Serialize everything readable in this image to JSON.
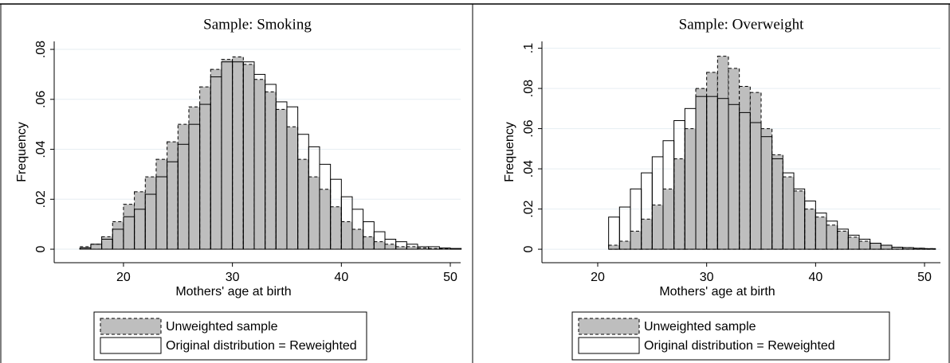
{
  "chart_data": [
    {
      "type": "histogram",
      "title": "Sample: Smoking",
      "x_label": "Mothers' age at birth",
      "y_label": "Frequency",
      "bins": [
        15,
        16,
        17,
        18,
        19,
        20,
        21,
        22,
        23,
        24,
        25,
        26,
        27,
        28,
        29,
        30,
        31,
        32,
        33,
        34,
        35,
        36,
        37,
        38,
        39,
        40,
        41,
        42,
        43,
        44,
        45,
        46,
        47,
        48,
        49,
        50,
        51
      ],
      "series": [
        {
          "name": "Unweighted sample",
          "color": "#bebebe",
          "line_style": "dashed",
          "values": [
            0,
            0.001,
            0.002,
            0.005,
            0.011,
            0.018,
            0.023,
            0.029,
            0.036,
            0.043,
            0.05,
            0.057,
            0.065,
            0.072,
            0.076,
            0.077,
            0.074,
            0.068,
            0.063,
            0.056,
            0.049,
            0.036,
            0.029,
            0.024,
            0.017,
            0.011,
            0.008,
            0.005,
            0.003,
            0.002,
            0.001,
            0.001,
            0.0005,
            0.0003,
            0.0002,
            0.0001
          ]
        },
        {
          "name": "Original distribution = Reweighted",
          "color": "#ffffff",
          "line_style": "solid",
          "values": [
            0,
            0.0005,
            0.002,
            0.004,
            0.008,
            0.013,
            0.016,
            0.022,
            0.029,
            0.035,
            0.042,
            0.05,
            0.058,
            0.069,
            0.075,
            0.075,
            0.075,
            0.07,
            0.066,
            0.059,
            0.057,
            0.046,
            0.041,
            0.034,
            0.028,
            0.021,
            0.016,
            0.011,
            0.007,
            0.004,
            0.003,
            0.002,
            0.001,
            0.001,
            0.0005,
            0.0003
          ]
        }
      ],
      "xlim": [
        13.64,
        50.95
      ],
      "xticks": [
        20,
        30,
        40,
        50
      ],
      "ylim": [
        -0.0054,
        0.0832
      ],
      "yticks": [
        0,
        {
          "value": 0.02,
          "label": ".02"
        },
        {
          "value": 0.04,
          "label": ".04"
        },
        {
          "value": 0.06,
          "label": ".06"
        },
        {
          "value": 0.08,
          "label": ".08"
        }
      ],
      "grid": true,
      "legend": "bottom"
    },
    {
      "type": "histogram",
      "title": "Sample: Overweight",
      "x_label": "Mothers' age at birth",
      "y_label": "Frequency",
      "bins": [
        21,
        22,
        23,
        24,
        25,
        26,
        27,
        28,
        29,
        30,
        31,
        32,
        33,
        34,
        35,
        36,
        37,
        38,
        39,
        40,
        41,
        42,
        43,
        44,
        45,
        46,
        47,
        48,
        49,
        50,
        51
      ],
      "series": [
        {
          "name": "Unweighted sample",
          "color": "#bebebe",
          "line_style": "dashed",
          "values": [
            0.002,
            0.004,
            0.009,
            0.015,
            0.022,
            0.03,
            0.045,
            0.06,
            0.08,
            0.088,
            0.096,
            0.09,
            0.081,
            0.078,
            0.06,
            0.047,
            0.036,
            0.029,
            0.02,
            0.016,
            0.012,
            0.009,
            0.006,
            0.004,
            0.003,
            0.002,
            0.001,
            0.0008,
            0.0005,
            0.0003
          ]
        },
        {
          "name": "Original distribution = Reweighted",
          "color": "#ffffff",
          "line_style": "solid",
          "values": [
            0.016,
            0.021,
            0.03,
            0.038,
            0.046,
            0.054,
            0.064,
            0.07,
            0.076,
            0.076,
            0.075,
            0.072,
            0.068,
            0.063,
            0.056,
            0.045,
            0.038,
            0.03,
            0.024,
            0.018,
            0.014,
            0.01,
            0.007,
            0.005,
            0.003,
            0.002,
            0.001,
            0.0008,
            0.0005,
            0.0003
          ]
        }
      ],
      "xlim": [
        14.88,
        51.46
      ],
      "xticks": [
        20,
        30,
        40,
        50
      ],
      "ylim": [
        -0.0067,
        0.1034
      ],
      "yticks": [
        0,
        {
          "value": 0.02,
          "label": ".02"
        },
        {
          "value": 0.04,
          "label": ".04"
        },
        {
          "value": 0.06,
          "label": ".06"
        },
        {
          "value": 0.08,
          "label": ".08"
        },
        {
          "value": 0.1,
          "label": ".1"
        }
      ],
      "grid": true,
      "legend": "bottom"
    }
  ]
}
